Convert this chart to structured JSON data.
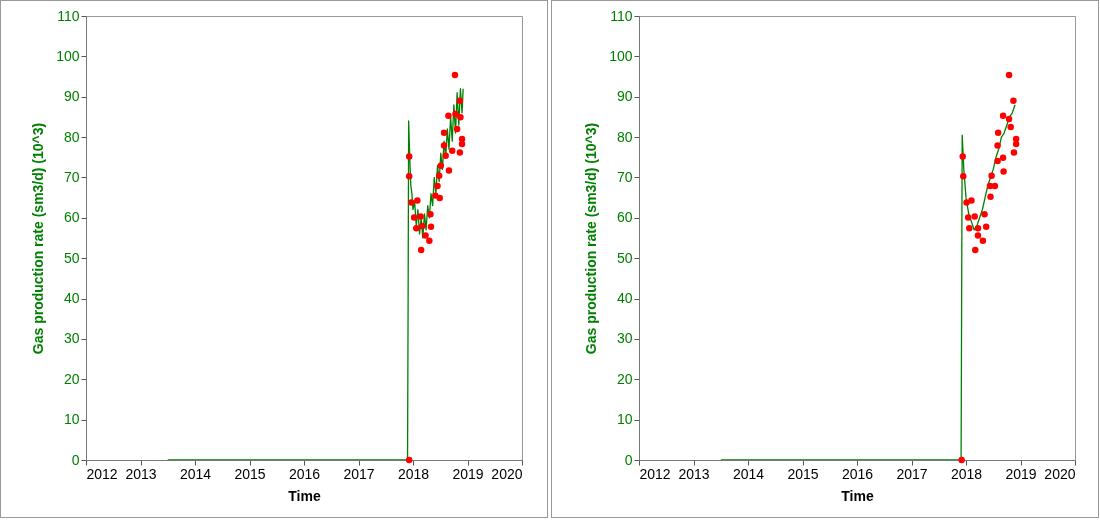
{
  "chart_data": [
    {
      "type": "line",
      "xlabel": "Time",
      "ylabel": "Gas production rate (sm3/d) (10^3)",
      "xlim": [
        2012,
        2020
      ],
      "xticks": [
        2012,
        2013,
        2014,
        2015,
        2016,
        2017,
        2018,
        2019,
        2020
      ],
      "ylim": [
        0,
        110
      ],
      "yticks": [
        0,
        10,
        20,
        30,
        40,
        50,
        60,
        70,
        80,
        90,
        100,
        110
      ],
      "grid": false,
      "series": [
        {
          "color": "#008000",
          "x": [
            2013.5,
            2017.9,
            2017.91,
            2017.92,
            2017.94,
            2017.96,
            2017.98,
            2018.0,
            2018.03,
            2018.06,
            2018.09,
            2018.12,
            2018.15,
            2018.18,
            2018.21,
            2018.24,
            2018.27,
            2018.3,
            2018.33,
            2018.36,
            2018.39,
            2018.42,
            2018.45,
            2018.48,
            2018.51,
            2018.54,
            2018.57,
            2018.6,
            2018.63,
            2018.66,
            2018.69,
            2018.72,
            2018.75,
            2018.78,
            2018.81,
            2018.84,
            2018.87,
            2018.9,
            2018.92
          ],
          "values": [
            0,
            0,
            38,
            84,
            75,
            68,
            66,
            62,
            64,
            58,
            62,
            56,
            60,
            55,
            61,
            57,
            63,
            60,
            66,
            63,
            70,
            66,
            73,
            69,
            76,
            72,
            79,
            75,
            82,
            77,
            85,
            79,
            88,
            81,
            91,
            83,
            92,
            86,
            92
          ]
        },
        {
          "type": "scatter",
          "color": "#ff0000",
          "x": [
            2017.93,
            2017.93,
            2017.93,
            2017.97,
            2018.08,
            2018.02,
            2018.14,
            2018.06,
            2018.17,
            2018.23,
            2018.3,
            2018.15,
            2018.32,
            2018.33,
            2018.41,
            2018.45,
            2018.48,
            2018.51,
            2018.49,
            2018.57,
            2018.57,
            2018.6,
            2018.66,
            2018.65,
            2018.78,
            2018.87,
            2018.86,
            2018.77,
            2018.9,
            2018.9,
            2018.86,
            2018.81,
            2018.72
          ],
          "values": [
            0,
            75.2,
            70.3,
            63.8,
            64.3,
            60.1,
            60.3,
            57.4,
            58.0,
            55.6,
            54.3,
            52.0,
            60.9,
            57.8,
            65.5,
            67.9,
            70.4,
            72.9,
            64.9,
            77.9,
            81.1,
            75.4,
            71.7,
            85.3,
            85.7,
            84.9,
            89.0,
            95.4,
            79.5,
            78.3,
            76.2,
            82.0,
            76.6
          ]
        }
      ]
    },
    {
      "type": "line",
      "xlabel": "Time",
      "ylabel": "Gas production rate (sm3/d) (10^3)",
      "xlim": [
        2012,
        2020
      ],
      "xticks": [
        2012,
        2013,
        2014,
        2015,
        2016,
        2017,
        2018,
        2019,
        2020
      ],
      "ylim": [
        0,
        110
      ],
      "yticks": [
        0,
        10,
        20,
        30,
        40,
        50,
        60,
        70,
        80,
        90,
        100,
        110
      ],
      "grid": false,
      "series": [
        {
          "color": "#008000",
          "x": [
            2013.5,
            2017.91,
            2017.92,
            2017.93,
            2017.96,
            2018.0,
            2018.05,
            2018.1,
            2018.15,
            2018.2,
            2018.25,
            2018.3,
            2018.35,
            2018.4,
            2018.45,
            2018.5,
            2018.55,
            2018.6,
            2018.65,
            2018.7,
            2018.75,
            2018.8,
            2018.85,
            2018.9
          ],
          "values": [
            0,
            0,
            40,
            80.5,
            72,
            65,
            61,
            59,
            57,
            58,
            60,
            62,
            65,
            68,
            70,
            72,
            75,
            77,
            80,
            81,
            83,
            85,
            86,
            88
          ]
        },
        {
          "type": "scatter",
          "color": "#ff0000",
          "x": [
            2017.92,
            2017.94,
            2017.95,
            2018.01,
            2018.1,
            2018.04,
            2018.16,
            2018.06,
            2018.22,
            2018.22,
            2018.31,
            2018.17,
            2018.34,
            2018.37,
            2018.45,
            2018.44,
            2018.47,
            2018.53,
            2018.58,
            2018.58,
            2018.59,
            2018.68,
            2018.69,
            2018.68,
            2018.79,
            2018.82,
            2018.88,
            2018.92,
            2018.92,
            2018.87,
            2018.79
          ],
          "values": [
            0,
            75.2,
            70.3,
            63.8,
            64.3,
            60.1,
            60.3,
            57.4,
            57.4,
            55.6,
            54.3,
            52.0,
            60.9,
            57.8,
            65.2,
            67.9,
            70.4,
            67.9,
            74.1,
            77.9,
            81.1,
            74.9,
            71.5,
            85.3,
            84.5,
            82.5,
            76.2,
            79.5,
            78.3,
            89.0,
            95.4
          ]
        }
      ]
    }
  ]
}
